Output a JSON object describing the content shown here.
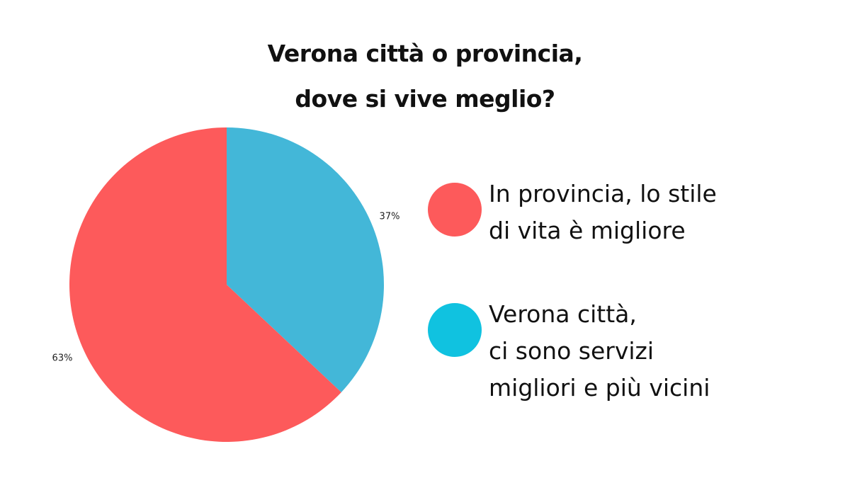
{
  "title": {
    "line1": "Verona città o provincia,",
    "line2": "dove si vive meglio?"
  },
  "chart_data": {
    "type": "pie",
    "slices": [
      {
        "name": "In provincia, lo stile di vita è migliore",
        "value": 63,
        "label": "63%",
        "color": "#fd5a5b"
      },
      {
        "name": "Verona città, ci sono servizi migliori e più vicini",
        "value": 37,
        "label": "37%",
        "color": "#43b7d8"
      }
    ]
  },
  "legend": {
    "items": [
      {
        "lines": [
          "In provincia, lo stile",
          "di vita è migliore"
        ],
        "color": "#fd5a5b"
      },
      {
        "lines": [
          "Verona città,",
          "ci sono servizi",
          "migliori e più vicini"
        ],
        "color": "#10c2e0"
      }
    ]
  }
}
